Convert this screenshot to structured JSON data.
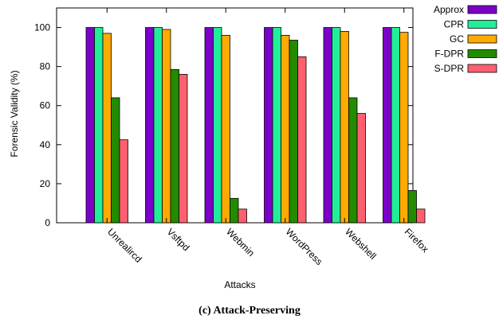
{
  "chart_data": {
    "type": "bar",
    "categories": [
      "Unrealircd",
      "Vsftpd",
      "Webmin",
      "WordPress",
      "Webshell",
      "Firefox"
    ],
    "series": [
      {
        "name": "Approx",
        "color": "#7b00c8",
        "values": [
          100,
          100,
          100,
          100,
          100,
          100
        ]
      },
      {
        "name": "CPR",
        "color": "#22ee99",
        "values": [
          100,
          100,
          100,
          100,
          100,
          100
        ]
      },
      {
        "name": "GC",
        "color": "#ffaa00",
        "values": [
          97,
          99,
          96,
          96,
          98,
          97.5
        ]
      },
      {
        "name": "F-DPR",
        "color": "#228b00",
        "values": [
          64,
          78.5,
          12.5,
          93.5,
          64,
          16.5
        ]
      },
      {
        "name": "S-DPR",
        "color": "#ff6070",
        "values": [
          42.5,
          76,
          7,
          85,
          56,
          7
        ]
      }
    ],
    "xlabel": "Attacks",
    "ylabel": "Forensic Validity (%)",
    "ylim": [
      0,
      110
    ],
    "yticks": [
      0,
      20,
      40,
      60,
      80,
      100
    ],
    "legend_position": "outside-right",
    "grid": false
  },
  "caption": "(c) Attack-Preserving"
}
